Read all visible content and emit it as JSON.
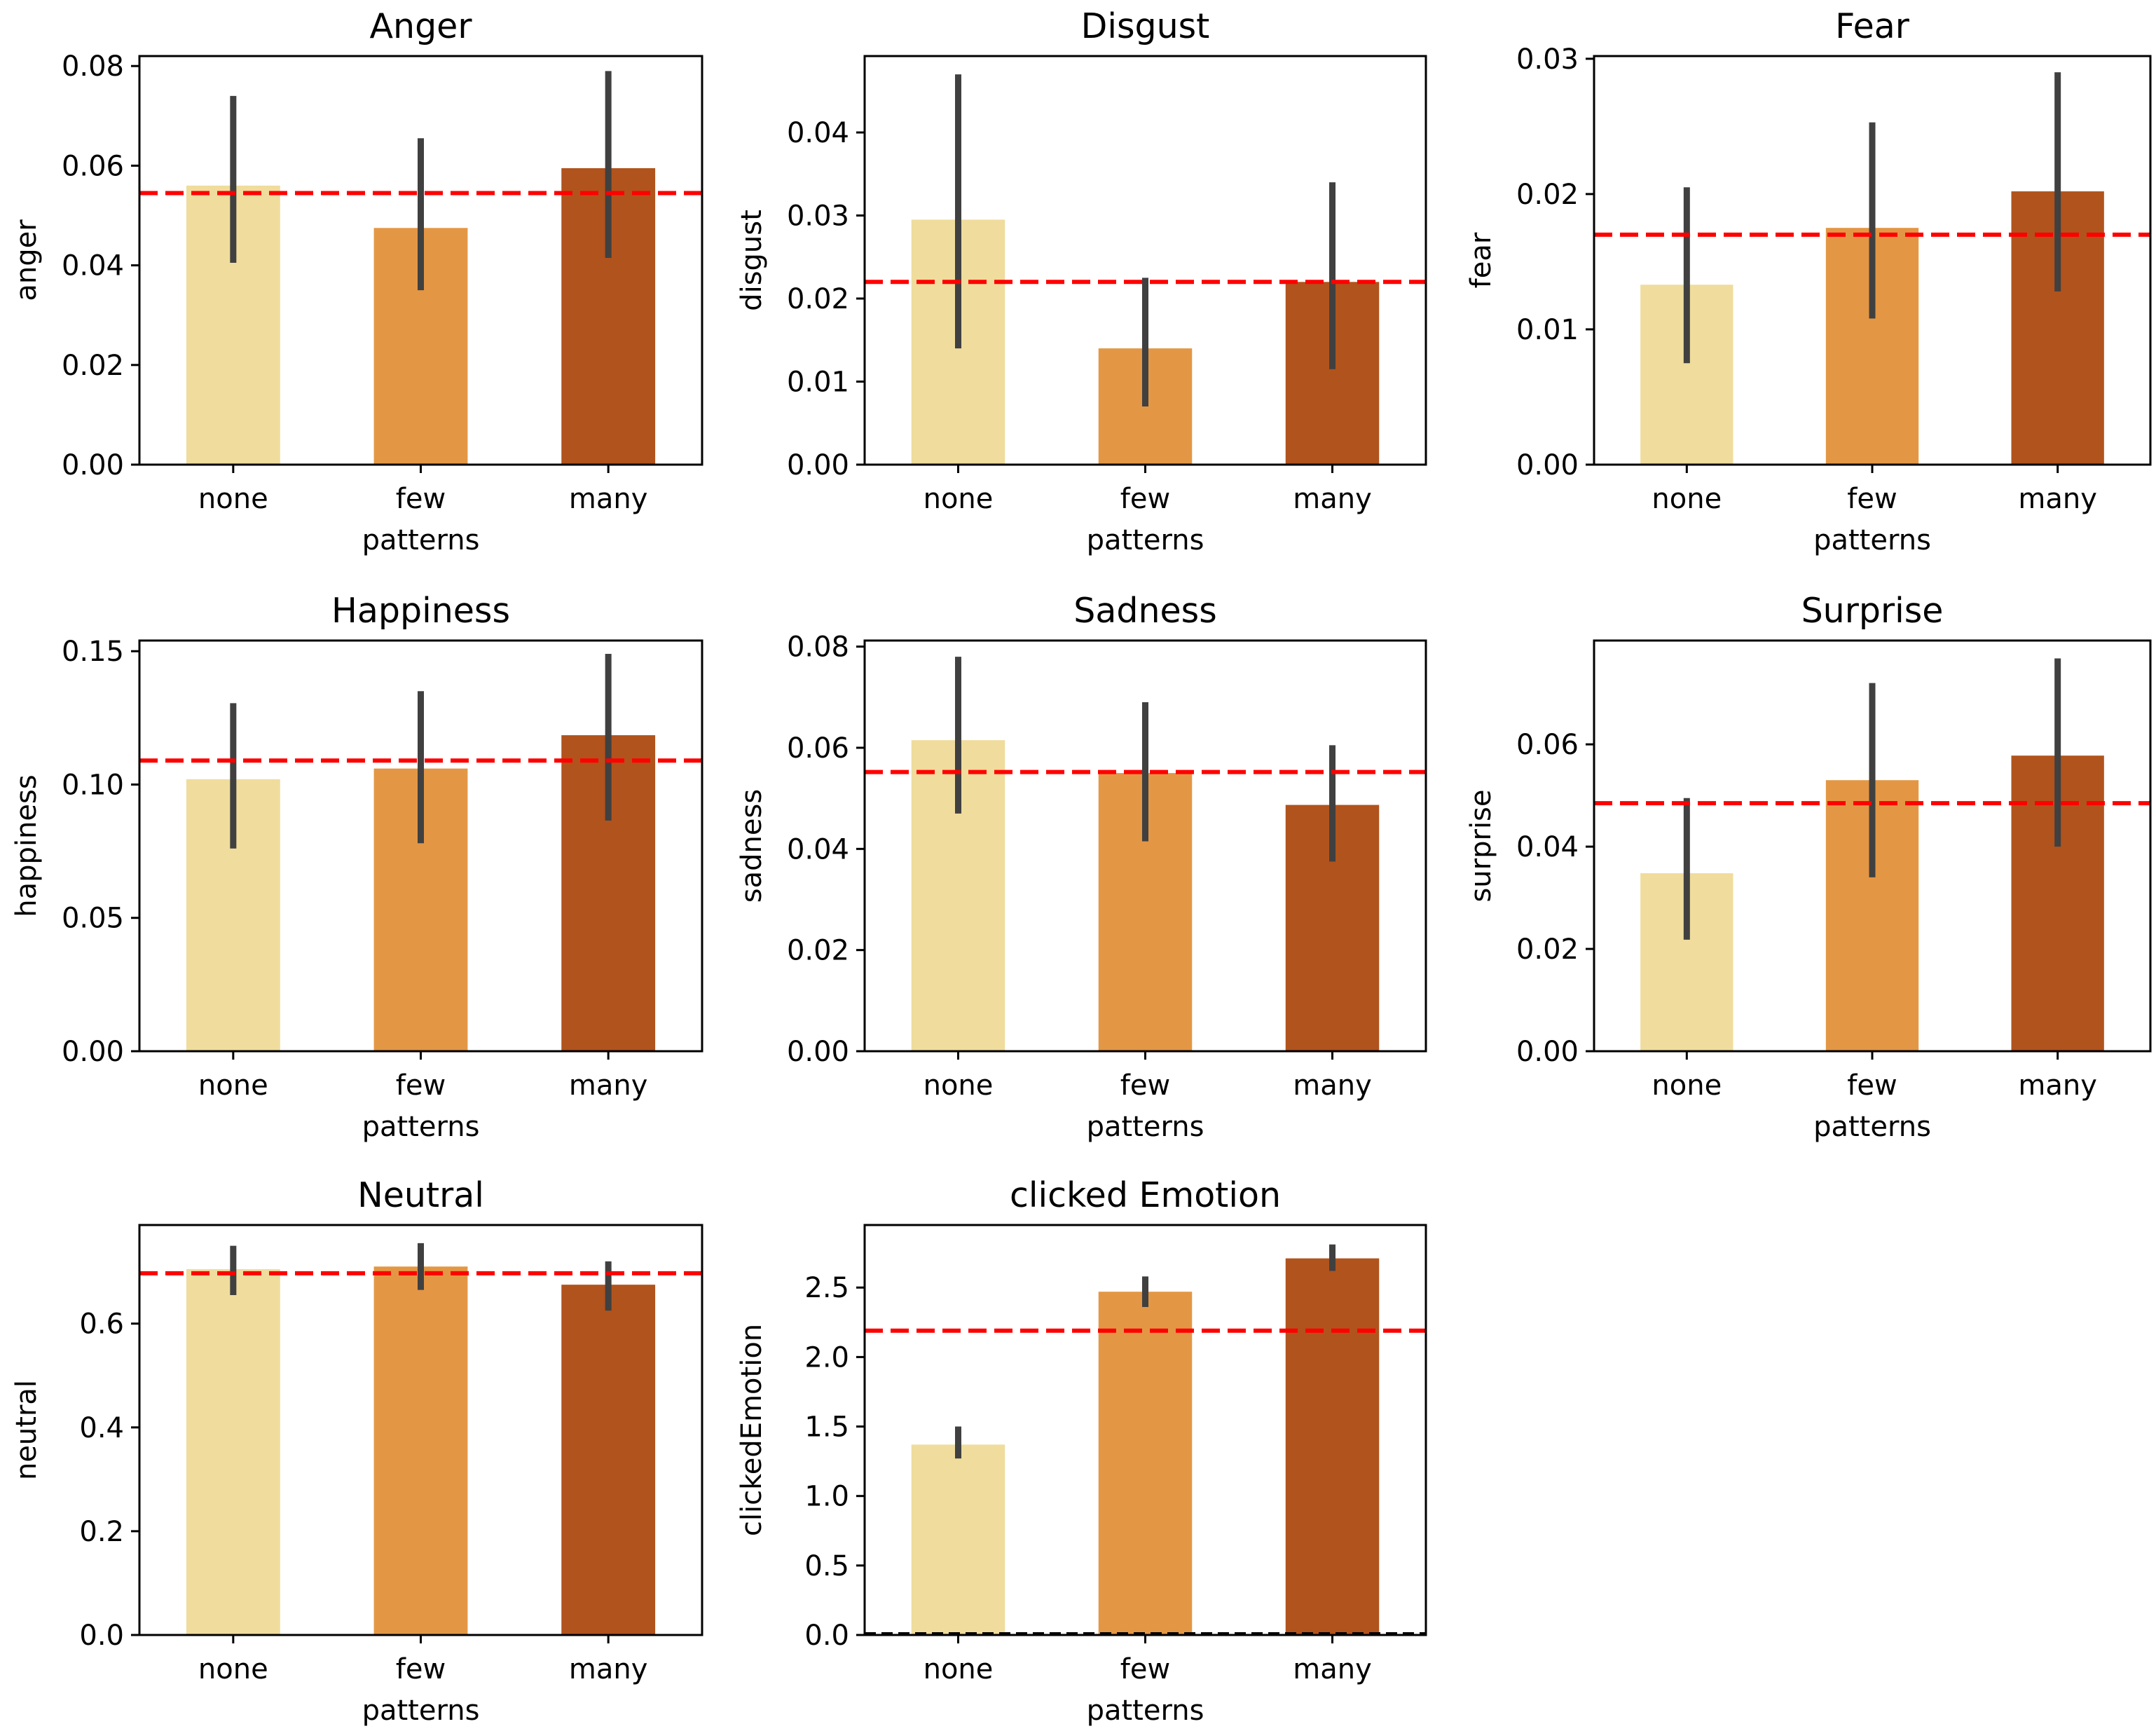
{
  "figure": {
    "categories_label": "patterns"
  },
  "chart_data": [
    {
      "type": "bar",
      "title": "Anger",
      "xlabel": "patterns",
      "ylabel": "anger",
      "categories": [
        "none",
        "few",
        "many"
      ],
      "values": [
        0.056,
        0.0475,
        0.0595
      ],
      "error_low": [
        0.0405,
        0.035,
        0.0415
      ],
      "error_high": [
        0.074,
        0.0655,
        0.079
      ],
      "reference_line": 0.0545,
      "ylim": [
        0,
        0.082
      ],
      "yticks": [
        0.0,
        0.02,
        0.04,
        0.06,
        0.08
      ],
      "ytick_labels": [
        "0.00",
        "0.02",
        "0.04",
        "0.06",
        "0.08"
      ],
      "colors": [
        "#f0dc9c",
        "#e39744",
        "#b1531c"
      ],
      "reference_color": "#ff0000"
    },
    {
      "type": "bar",
      "title": "Disgust",
      "xlabel": "patterns",
      "ylabel": "disgust",
      "categories": [
        "none",
        "few",
        "many"
      ],
      "values": [
        0.0295,
        0.014,
        0.022
      ],
      "error_low": [
        0.014,
        0.007,
        0.0115
      ],
      "error_high": [
        0.047,
        0.0225,
        0.034
      ],
      "reference_line": 0.022,
      "ylim": [
        0,
        0.0492
      ],
      "yticks": [
        0.0,
        0.01,
        0.02,
        0.03,
        0.04
      ],
      "ytick_labels": [
        "0.00",
        "0.01",
        "0.02",
        "0.03",
        "0.04"
      ],
      "colors": [
        "#f0dc9c",
        "#e39744",
        "#b1531c"
      ],
      "reference_color": "#ff0000"
    },
    {
      "type": "bar",
      "title": "Fear",
      "xlabel": "patterns",
      "ylabel": "fear",
      "categories": [
        "none",
        "few",
        "many"
      ],
      "values": [
        0.0133,
        0.0175,
        0.0202
      ],
      "error_low": [
        0.0075,
        0.0108,
        0.0128
      ],
      "error_high": [
        0.0205,
        0.0253,
        0.029
      ],
      "reference_line": 0.017,
      "ylim": [
        0,
        0.0302
      ],
      "yticks": [
        0.0,
        0.01,
        0.02,
        0.03
      ],
      "ytick_labels": [
        "0.00",
        "0.01",
        "0.02",
        "0.03"
      ],
      "colors": [
        "#f0dc9c",
        "#e39744",
        "#b1531c"
      ],
      "reference_color": "#ff0000"
    },
    {
      "type": "bar",
      "title": "Happiness",
      "xlabel": "patterns",
      "ylabel": "happiness",
      "categories": [
        "none",
        "few",
        "many"
      ],
      "values": [
        0.102,
        0.106,
        0.1185
      ],
      "error_low": [
        0.076,
        0.078,
        0.0865
      ],
      "error_high": [
        0.1305,
        0.135,
        0.149
      ],
      "reference_line": 0.109,
      "ylim": [
        0,
        0.154
      ],
      "yticks": [
        0.0,
        0.05,
        0.1,
        0.15
      ],
      "ytick_labels": [
        "0.00",
        "0.05",
        "0.10",
        "0.15"
      ],
      "colors": [
        "#f0dc9c",
        "#e39744",
        "#b1531c"
      ],
      "reference_color": "#ff0000"
    },
    {
      "type": "bar",
      "title": "Sadness",
      "xlabel": "patterns",
      "ylabel": "sadness",
      "categories": [
        "none",
        "few",
        "many"
      ],
      "values": [
        0.0615,
        0.055,
        0.0487
      ],
      "error_low": [
        0.047,
        0.0415,
        0.0375
      ],
      "error_high": [
        0.078,
        0.069,
        0.0605
      ],
      "reference_line": 0.0552,
      "ylim": [
        0,
        0.0812
      ],
      "yticks": [
        0.0,
        0.02,
        0.04,
        0.06,
        0.08
      ],
      "ytick_labels": [
        "0.00",
        "0.02",
        "0.04",
        "0.06",
        "0.08"
      ],
      "colors": [
        "#f0dc9c",
        "#e39744",
        "#b1531c"
      ],
      "reference_color": "#ff0000"
    },
    {
      "type": "bar",
      "title": "Surprise",
      "xlabel": "patterns",
      "ylabel": "surprise",
      "categories": [
        "none",
        "few",
        "many"
      ],
      "values": [
        0.0348,
        0.053,
        0.0578
      ],
      "error_low": [
        0.0218,
        0.034,
        0.04
      ],
      "error_high": [
        0.0495,
        0.072,
        0.0768
      ],
      "reference_line": 0.0485,
      "ylim": [
        0,
        0.0803
      ],
      "yticks": [
        0.0,
        0.02,
        0.04,
        0.06
      ],
      "ytick_labels": [
        "0.00",
        "0.02",
        "0.04",
        "0.06"
      ],
      "colors": [
        "#f0dc9c",
        "#e39744",
        "#b1531c"
      ],
      "reference_color": "#ff0000"
    },
    {
      "type": "bar",
      "title": "Neutral",
      "xlabel": "patterns",
      "ylabel": "neutral",
      "categories": [
        "none",
        "few",
        "many"
      ],
      "values": [
        0.705,
        0.71,
        0.675
      ],
      "error_low": [
        0.655,
        0.665,
        0.625
      ],
      "error_high": [
        0.75,
        0.755,
        0.72
      ],
      "reference_line": 0.697,
      "ylim": [
        0,
        0.79
      ],
      "yticks": [
        0.0,
        0.2,
        0.4,
        0.6
      ],
      "ytick_labels": [
        "0.0",
        "0.2",
        "0.4",
        "0.6"
      ],
      "colors": [
        "#f0dc9c",
        "#e39744",
        "#b1531c"
      ],
      "reference_color": "#ff0000"
    },
    {
      "type": "bar",
      "title": "clicked Emotion",
      "xlabel": "patterns",
      "ylabel": "clickedEmotion",
      "categories": [
        "none",
        "few",
        "many"
      ],
      "values": [
        1.37,
        2.47,
        2.71
      ],
      "error_low": [
        1.27,
        2.36,
        2.62
      ],
      "error_high": [
        1.5,
        2.58,
        2.81
      ],
      "reference_line": 2.19,
      "baseline_line": 0.0,
      "ylim": [
        0,
        2.95
      ],
      "yticks": [
        0.0,
        0.5,
        1.0,
        1.5,
        2.0,
        2.5
      ],
      "ytick_labels": [
        "0.0",
        "0.5",
        "1.0",
        "1.5",
        "2.0",
        "2.5"
      ],
      "colors": [
        "#f0dc9c",
        "#e39744",
        "#b1531c"
      ],
      "reference_color": "#ff0000"
    }
  ]
}
